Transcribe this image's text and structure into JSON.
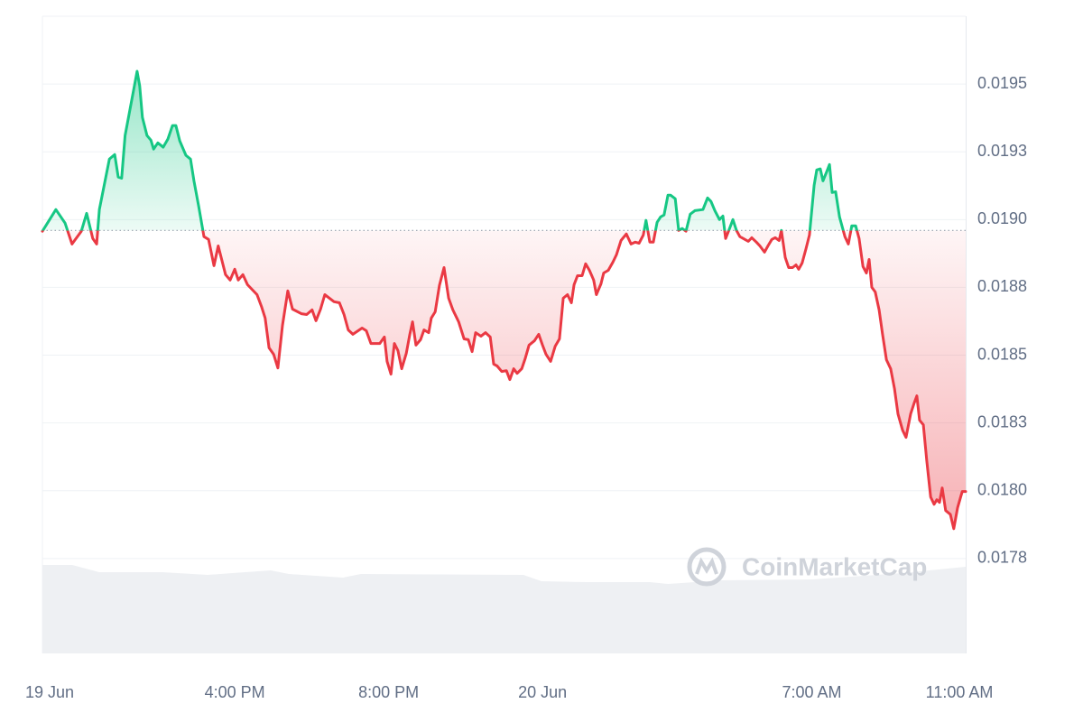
{
  "chart_data": {
    "type": "baseline-line",
    "watermark": "CoinMarketCap",
    "baseline": 0.01896,
    "up_color": "#16c784",
    "down_color": "#ea3943",
    "grid": true,
    "xlim": [
      0,
      24
    ],
    "xticks": [
      {
        "value": 0,
        "label": "19 Jun"
      },
      {
        "value": 5,
        "label": "4:00 PM"
      },
      {
        "value": 9,
        "label": "8:00 PM"
      },
      {
        "value": 13,
        "label": "20 Jun"
      },
      {
        "value": 20,
        "label": "7:00 AM"
      },
      {
        "value": 24,
        "label": "11:00 AM"
      }
    ],
    "ylim": [
      0.0174,
      0.01975
    ],
    "yticks": [
      {
        "value": 0.01775,
        "label": "0.0178"
      },
      {
        "value": 0.018,
        "label": "0.0180"
      },
      {
        "value": 0.01825,
        "label": "0.0183"
      },
      0.0185,
      {
        "value": 0.01875,
        "label": "0.0188"
      },
      {
        "value": 0.019,
        "label": "0.0190"
      },
      {
        "value": 0.01925,
        "label": "0.0193"
      },
      0.0195
    ],
    "x": [
      0,
      0.35,
      0.59,
      0.77,
      1.01,
      1.15,
      1.31,
      1.41,
      1.48,
      1.74,
      1.88,
      1.97,
      2.06,
      2.15,
      2.37,
      2.46,
      2.53,
      2.6,
      2.72,
      2.82,
      2.89,
      3.0,
      3.14,
      3.26,
      3.38,
      3.47,
      3.57,
      3.73,
      3.85,
      3.94,
      4.06,
      4.2,
      4.32,
      4.46,
      4.57,
      4.76,
      4.88,
      5.0,
      5.09,
      5.21,
      5.33,
      5.58,
      5.7,
      5.79,
      5.89,
      6.01,
      6.12,
      6.24,
      6.38,
      6.5,
      6.73,
      6.87,
      7.01,
      7.11,
      7.23,
      7.34,
      7.58,
      7.72,
      7.84,
      7.95,
      8.07,
      8.31,
      8.42,
      8.54,
      8.77,
      8.89,
      8.96,
      9.06,
      9.15,
      9.24,
      9.34,
      9.46,
      9.55,
      9.62,
      9.71,
      9.83,
      9.92,
      10.04,
      10.11,
      10.21,
      10.32,
      10.44,
      10.56,
      10.67,
      10.82,
      10.96,
      11.07,
      11.17,
      11.26,
      11.4,
      11.52,
      11.64,
      11.73,
      11.82,
      11.94,
      12.06,
      12.15,
      12.25,
      12.34,
      12.46,
      12.55,
      12.65,
      12.79,
      12.9,
      13.0,
      13.09,
      13.21,
      13.33,
      13.44,
      13.54,
      13.65,
      13.75,
      13.82,
      13.91,
      14.03,
      14.12,
      14.22,
      14.33,
      14.4,
      14.52,
      14.59,
      14.71,
      14.83,
      14.92,
      15.04,
      15.18,
      15.3,
      15.41,
      15.51,
      15.62,
      15.69,
      15.79,
      15.88,
      15.98,
      16.07,
      16.16,
      16.26,
      16.33,
      16.45,
      16.54,
      16.63,
      16.73,
      16.84,
      16.96,
      17.17,
      17.29,
      17.38,
      17.48,
      17.6,
      17.69,
      17.76,
      17.85,
      17.95,
      18.04,
      18.13,
      18.35,
      18.44,
      18.56,
      18.65,
      18.77,
      18.86,
      18.96,
      19.05,
      19.15,
      19.21,
      19.31,
      19.4,
      19.5,
      19.59,
      19.66,
      19.75,
      19.85,
      19.94,
      20.06,
      20.13,
      20.22,
      20.29,
      20.39,
      20.46,
      20.53,
      20.62,
      20.72,
      20.86,
      20.95,
      21.04,
      21.14,
      21.23,
      21.33,
      21.42,
      21.49,
      21.56,
      21.65,
      21.75,
      21.84,
      21.94,
      22.05,
      22.15,
      22.24,
      22.36,
      22.45,
      22.57,
      22.66,
      22.73,
      22.8,
      22.9,
      22.99,
      23.09,
      23.18,
      23.25,
      23.32,
      23.39,
      23.48,
      23.6,
      23.69,
      23.79,
      23.91,
      24.0
    ],
    "values": [
      0.018957,
      0.019037,
      0.018987,
      0.01891,
      0.018957,
      0.019023,
      0.01893,
      0.01891,
      0.019037,
      0.019223,
      0.01924,
      0.019157,
      0.019153,
      0.01931,
      0.019477,
      0.019547,
      0.019493,
      0.019377,
      0.01931,
      0.019293,
      0.01926,
      0.019283,
      0.019267,
      0.019297,
      0.019347,
      0.019347,
      0.01929,
      0.019237,
      0.019223,
      0.019143,
      0.01905,
      0.018937,
      0.018927,
      0.01883,
      0.018903,
      0.018797,
      0.018777,
      0.018817,
      0.018777,
      0.018797,
      0.01876,
      0.018723,
      0.018677,
      0.018637,
      0.018527,
      0.018503,
      0.018453,
      0.01861,
      0.018737,
      0.01867,
      0.018653,
      0.01865,
      0.018667,
      0.018627,
      0.01867,
      0.018723,
      0.018697,
      0.018693,
      0.01865,
      0.018593,
      0.018577,
      0.0186,
      0.01859,
      0.018543,
      0.018543,
      0.018567,
      0.018477,
      0.01843,
      0.018543,
      0.018517,
      0.01845,
      0.018507,
      0.018577,
      0.018623,
      0.018537,
      0.018557,
      0.018593,
      0.018583,
      0.018637,
      0.01866,
      0.018757,
      0.018823,
      0.01871,
      0.018667,
      0.018623,
      0.01856,
      0.018557,
      0.018513,
      0.018583,
      0.01857,
      0.018583,
      0.018567,
      0.018467,
      0.01846,
      0.01844,
      0.018443,
      0.01841,
      0.01845,
      0.018433,
      0.01845,
      0.018487,
      0.018537,
      0.018553,
      0.018577,
      0.018537,
      0.018503,
      0.018477,
      0.018533,
      0.01856,
      0.01871,
      0.018723,
      0.018693,
      0.01876,
      0.018793,
      0.018793,
      0.018837,
      0.018813,
      0.018777,
      0.018723,
      0.018763,
      0.018803,
      0.018813,
      0.018843,
      0.01887,
      0.018923,
      0.018947,
      0.01891,
      0.018917,
      0.018913,
      0.018943,
      0.018997,
      0.018917,
      0.018917,
      0.01899,
      0.01901,
      0.019017,
      0.01909,
      0.01909,
      0.019077,
      0.01896,
      0.018967,
      0.018957,
      0.01902,
      0.019033,
      0.019037,
      0.01908,
      0.019067,
      0.019033,
      0.019,
      0.019013,
      0.01893,
      0.018963,
      0.019,
      0.01896,
      0.018937,
      0.01892,
      0.018933,
      0.018917,
      0.018903,
      0.01888,
      0.018903,
      0.018927,
      0.018933,
      0.018923,
      0.01896,
      0.01886,
      0.018823,
      0.018823,
      0.018833,
      0.018817,
      0.01884,
      0.018893,
      0.018943,
      0.019127,
      0.019183,
      0.019187,
      0.019143,
      0.019177,
      0.019203,
      0.0191,
      0.019103,
      0.01901,
      0.018937,
      0.01891,
      0.018977,
      0.018977,
      0.01893,
      0.018827,
      0.018803,
      0.018853,
      0.01875,
      0.018733,
      0.018667,
      0.018577,
      0.018483,
      0.01845,
      0.018377,
      0.018283,
      0.018223,
      0.018197,
      0.018283,
      0.018323,
      0.01835,
      0.01826,
      0.018243,
      0.01811,
      0.017977,
      0.01795,
      0.017967,
      0.017957,
      0.01801,
      0.017927,
      0.017913,
      0.01786,
      0.017937,
      0.017997,
      0.017997
    ]
  }
}
